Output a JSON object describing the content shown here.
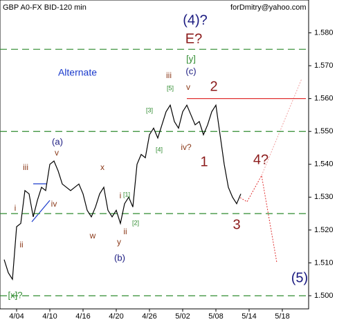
{
  "chart_data": {
    "type": "line",
    "title": "GBP A0-FX BID-120 min",
    "subtitle": "forDmitry@yahoo.com",
    "categories": [
      null,
      null,
      null,
      "4/04",
      null,
      null,
      null,
      null,
      null,
      null,
      null,
      "4/10",
      null,
      null,
      null,
      null,
      null,
      null,
      null,
      "4/16",
      null,
      null,
      null,
      null,
      null,
      null,
      null,
      "4/20",
      null,
      null,
      null,
      null,
      null,
      null,
      null,
      "4/26",
      null,
      null,
      null,
      null,
      null,
      null,
      null,
      "5/02",
      null,
      null,
      null,
      null,
      null,
      null,
      null,
      "5/08",
      null,
      null,
      null,
      null,
      null,
      null,
      null,
      "5/14",
      null,
      null,
      null,
      null,
      null,
      null,
      null,
      "5/18",
      null,
      null,
      null,
      null,
      null,
      null
    ],
    "series": [
      {
        "color": "#000000",
        "values": [
          1.511,
          1.507,
          1.505,
          1.521,
          1.522,
          1.532,
          1.531,
          1.524,
          1.529,
          1.533,
          1.532,
          1.54,
          1.541,
          1.538,
          1.534,
          1.533,
          1.532,
          1.533,
          1.534,
          1.531,
          1.526,
          1.524,
          1.527,
          1.531,
          1.533,
          1.526,
          1.524,
          1.526,
          1.522,
          1.528,
          1.53,
          1.527,
          1.54,
          1.543,
          1.542,
          1.549,
          1.551,
          1.548,
          1.552,
          1.556,
          1.558,
          1.553,
          1.551,
          1.556,
          1.558,
          1.555,
          1.552,
          1.553,
          1.549,
          1.552,
          1.556,
          1.558,
          1.549,
          1.54,
          1.533,
          1.53,
          1.528,
          1.531,
          null,
          null,
          null,
          null,
          null,
          null,
          null,
          null,
          null,
          null,
          null,
          null,
          null,
          null,
          null,
          null
        ]
      }
    ],
    "ylim": [
      1.496,
      1.59
    ],
    "yticks": [
      {
        "value": 1.5,
        "label": "1.500"
      },
      {
        "value": 1.51,
        "label": "1.510"
      },
      {
        "value": 1.52,
        "label": "1.520"
      },
      {
        "value": 1.53,
        "label": "1.530"
      },
      {
        "value": 1.54,
        "label": "1.540"
      },
      {
        "value": 1.55,
        "label": "1.550"
      },
      {
        "value": 1.56,
        "label": "1.560"
      },
      {
        "value": 1.57,
        "label": "1.570"
      },
      {
        "value": 1.58,
        "label": "1.580"
      }
    ],
    "levels": [
      {
        "value": 1.575,
        "color": "#2e8b2e"
      },
      {
        "value": 1.55,
        "color": "#2e8b2e"
      },
      {
        "value": 1.525,
        "color": "#2e8b2e"
      },
      {
        "value": 1.5,
        "color": "#2e8b2e"
      }
    ],
    "resistance": {
      "value": 1.56,
      "color": "#e03030"
    },
    "annotations": [
      {
        "text": "(4)?",
        "color": "#1a1a80"
      },
      {
        "text": "E?",
        "color": "#8b1a1a"
      },
      {
        "text": "[y]",
        "color": "#2e8b2e"
      },
      {
        "text": "(c)",
        "color": "#1a1a80"
      },
      {
        "text": "iii",
        "color": "#8b3a1a"
      },
      {
        "text": "[5]",
        "color": "#2e8b2e"
      },
      {
        "text": "v",
        "color": "#8b3a1a"
      },
      {
        "text": "2",
        "color": "#8b1a1a"
      },
      {
        "text": "Alternate",
        "color": "#1a3acc"
      },
      {
        "text": "(a)",
        "color": "#1a1a80"
      },
      {
        "text": "iii",
        "color": "#8b3a1a"
      },
      {
        "text": "v",
        "color": "#8b3a1a"
      },
      {
        "text": "x",
        "color": "#8b3a1a"
      },
      {
        "text": "[3]",
        "color": "#2e8b2e"
      },
      {
        "text": "[4]",
        "color": "#2e8b2e"
      },
      {
        "text": "iv?",
        "color": "#8b3a1a"
      },
      {
        "text": "1",
        "color": "#8b1a1a"
      },
      {
        "text": "4?",
        "color": "#8b1a1a"
      },
      {
        "text": "i",
        "color": "#8b3a1a"
      },
      {
        "text": "iv",
        "color": "#8b3a1a"
      },
      {
        "text": "i",
        "color": "#8b3a1a"
      },
      {
        "text": "[1]",
        "color": "#2e8b2e"
      },
      {
        "text": "3",
        "color": "#8b1a1a"
      },
      {
        "text": "ii",
        "color": "#8b3a1a"
      },
      {
        "text": "w",
        "color": "#8b3a1a"
      },
      {
        "text": "[2]",
        "color": "#2e8b2e"
      },
      {
        "text": "ii",
        "color": "#8b3a1a"
      },
      {
        "text": "y",
        "color": "#8b3a1a"
      },
      {
        "text": "(b)",
        "color": "#1a1a80"
      },
      {
        "text": "(5)",
        "color": "#1a1a80"
      },
      {
        "text": "[x]?",
        "color": "#2e8b2e"
      }
    ]
  }
}
